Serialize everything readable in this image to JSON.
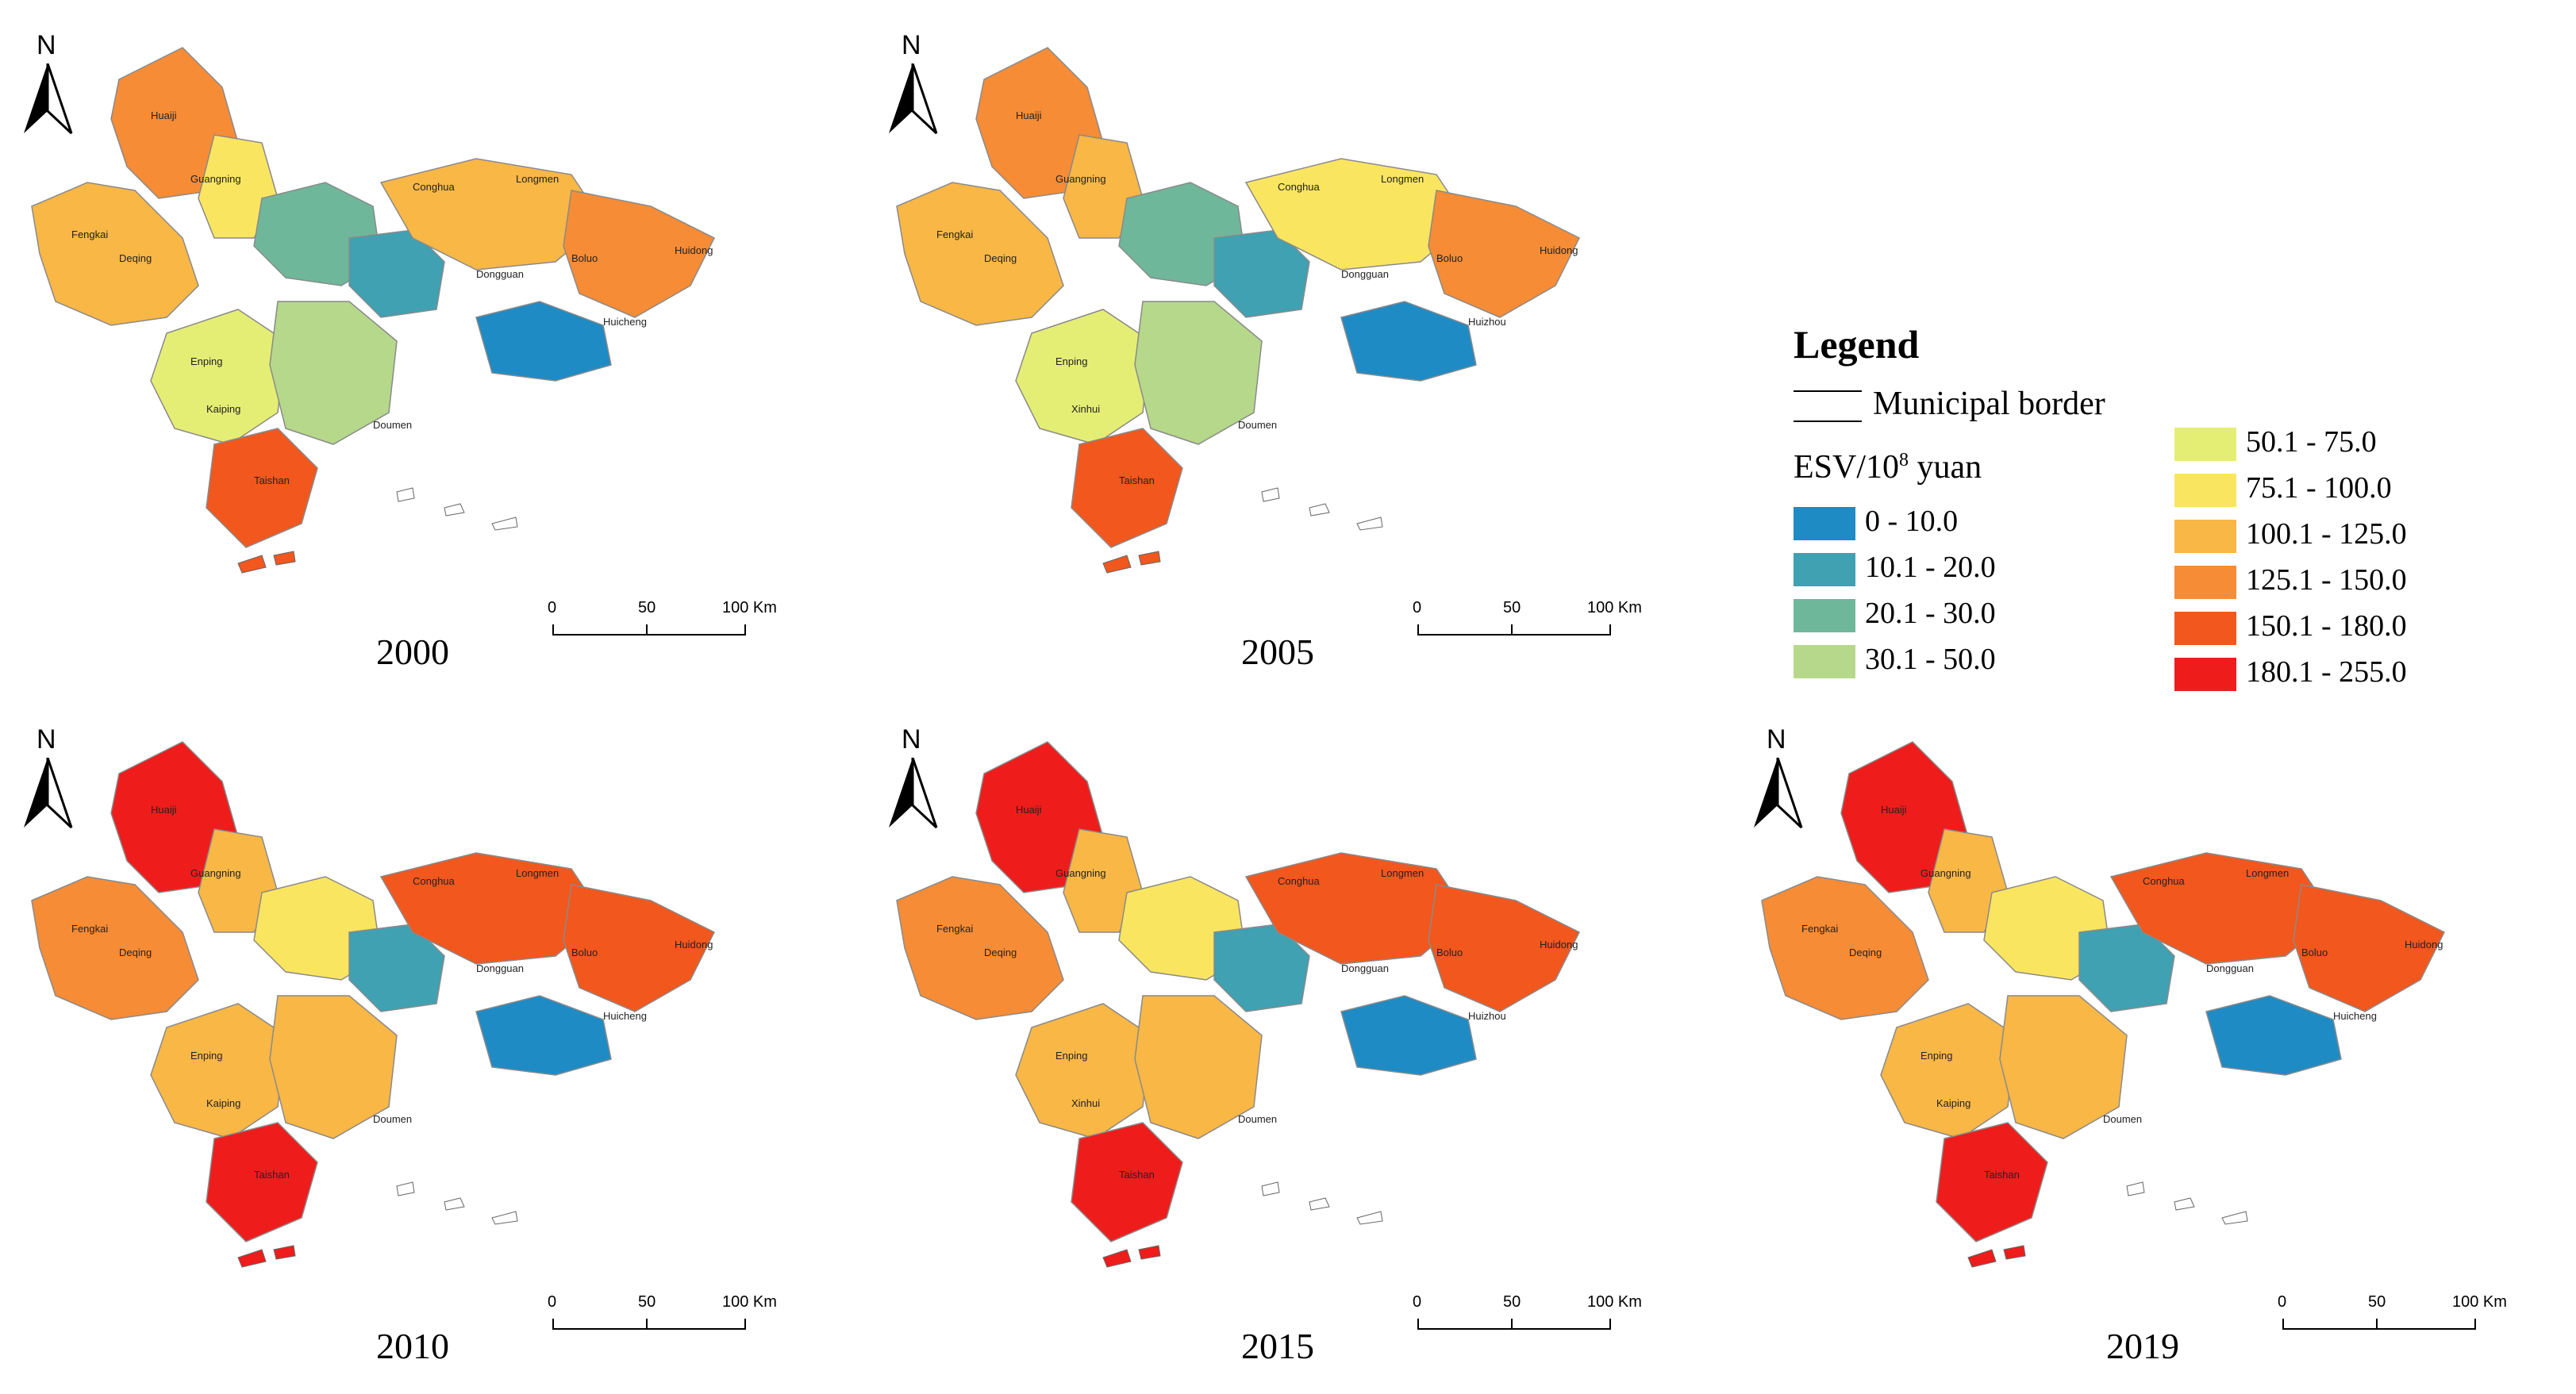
{
  "legend": {
    "title": "Legend",
    "border_label": "Municipal border",
    "esv_prefix": "ESV/10",
    "esv_exp": "8",
    "esv_suffix": " yuan",
    "classes": [
      {
        "label": "0 - 10.0",
        "color": "#1f8bc4"
      },
      {
        "label": "10.1 - 20.0",
        "color": "#3fa1b2"
      },
      {
        "label": "20.1 - 30.0",
        "color": "#6fb79a"
      },
      {
        "label": "30.1 - 50.0",
        "color": "#b6d88a"
      },
      {
        "label": "50.1 - 75.0",
        "color": "#e5ee74"
      },
      {
        "label": "75.1 - 100.0",
        "color": "#fae560"
      },
      {
        "label": "100.1 - 125.0",
        "color": "#f9b746"
      },
      {
        "label": "125.1 - 150.0",
        "color": "#f68c36"
      },
      {
        "label": "150.1 - 180.0",
        "color": "#f2571e"
      },
      {
        "label": "180.1 - 255.0",
        "color": "#ef1c1c"
      }
    ]
  },
  "north_label": "N",
  "scale": {
    "t0": "0",
    "t50": "50",
    "t100": "100 Km"
  },
  "panels": [
    {
      "year": "2000",
      "west": "#f9b746",
      "north": "#f68c36",
      "northc": "#fae560",
      "center": "#6fb79a",
      "core": "#3fa1b2",
      "east": "#f9b746",
      "east2": "#f68c36",
      "south": "#b6d88a",
      "southc": "#f2571e",
      "pearl": "#1f8bc4",
      "sw": "#e5ee74",
      "labels": [
        "Huaiji",
        "Fengkai",
        "Guangning",
        "Deqing",
        "Conghua",
        "Longmen",
        "Boluo",
        "Huicheng",
        "Huidong",
        "Dongguan",
        "Taishan",
        "Enping",
        "Kaiping",
        "Doumen"
      ]
    },
    {
      "year": "2005",
      "west": "#f9b746",
      "north": "#f68c36",
      "northc": "#f9b746",
      "center": "#6fb79a",
      "core": "#3fa1b2",
      "east": "#fae560",
      "east2": "#f68c36",
      "south": "#b6d88a",
      "southc": "#f2571e",
      "pearl": "#1f8bc4",
      "sw": "#e5ee74",
      "labels": [
        "Huaiji",
        "Fengkai",
        "Guangning",
        "Deqing",
        "Conghua",
        "Longmen",
        "Boluo",
        "Huizhou",
        "Huidong",
        "Dongguan",
        "Taishan",
        "Enping",
        "Xinhui",
        "Doumen"
      ]
    },
    {
      "year": "2010",
      "west": "#f68c36",
      "north": "#ef1c1c",
      "northc": "#f9b746",
      "center": "#fae560",
      "core": "#3fa1b2",
      "east": "#f2571e",
      "east2": "#f2571e",
      "south": "#f9b746",
      "southc": "#ef1c1c",
      "pearl": "#1f8bc4",
      "sw": "#f9b746",
      "labels": [
        "Huaiji",
        "Fengkai",
        "Guangning",
        "Deqing",
        "Conghua",
        "Longmen",
        "Boluo",
        "Huicheng",
        "Huidong",
        "Dongguan",
        "Taishan",
        "Enping",
        "Kaiping",
        "Doumen"
      ]
    },
    {
      "year": "2015",
      "west": "#f68c36",
      "north": "#ef1c1c",
      "northc": "#f9b746",
      "center": "#fae560",
      "core": "#3fa1b2",
      "east": "#f2571e",
      "east2": "#f2571e",
      "south": "#f9b746",
      "southc": "#ef1c1c",
      "pearl": "#1f8bc4",
      "sw": "#f9b746",
      "labels": [
        "Huaiji",
        "Fengkai",
        "Guangning",
        "Deqing",
        "Conghua",
        "Longmen",
        "Boluo",
        "Huizhou",
        "Huidong",
        "Dongguan",
        "Taishan",
        "Enping",
        "Xinhui",
        "Doumen"
      ]
    },
    {
      "year": "2019",
      "west": "#f68c36",
      "north": "#ef1c1c",
      "northc": "#f9b746",
      "center": "#fae560",
      "core": "#3fa1b2",
      "east": "#f2571e",
      "east2": "#f2571e",
      "south": "#f9b746",
      "southc": "#ef1c1c",
      "pearl": "#1f8bc4",
      "sw": "#f9b746",
      "labels": [
        "Huaiji",
        "Fengkai",
        "Guangning",
        "Deqing",
        "Conghua",
        "Longmen",
        "Boluo",
        "Huicheng",
        "Huidong",
        "Dongguan",
        "Taishan",
        "Enping",
        "Kaiping",
        "Doumen"
      ]
    }
  ]
}
